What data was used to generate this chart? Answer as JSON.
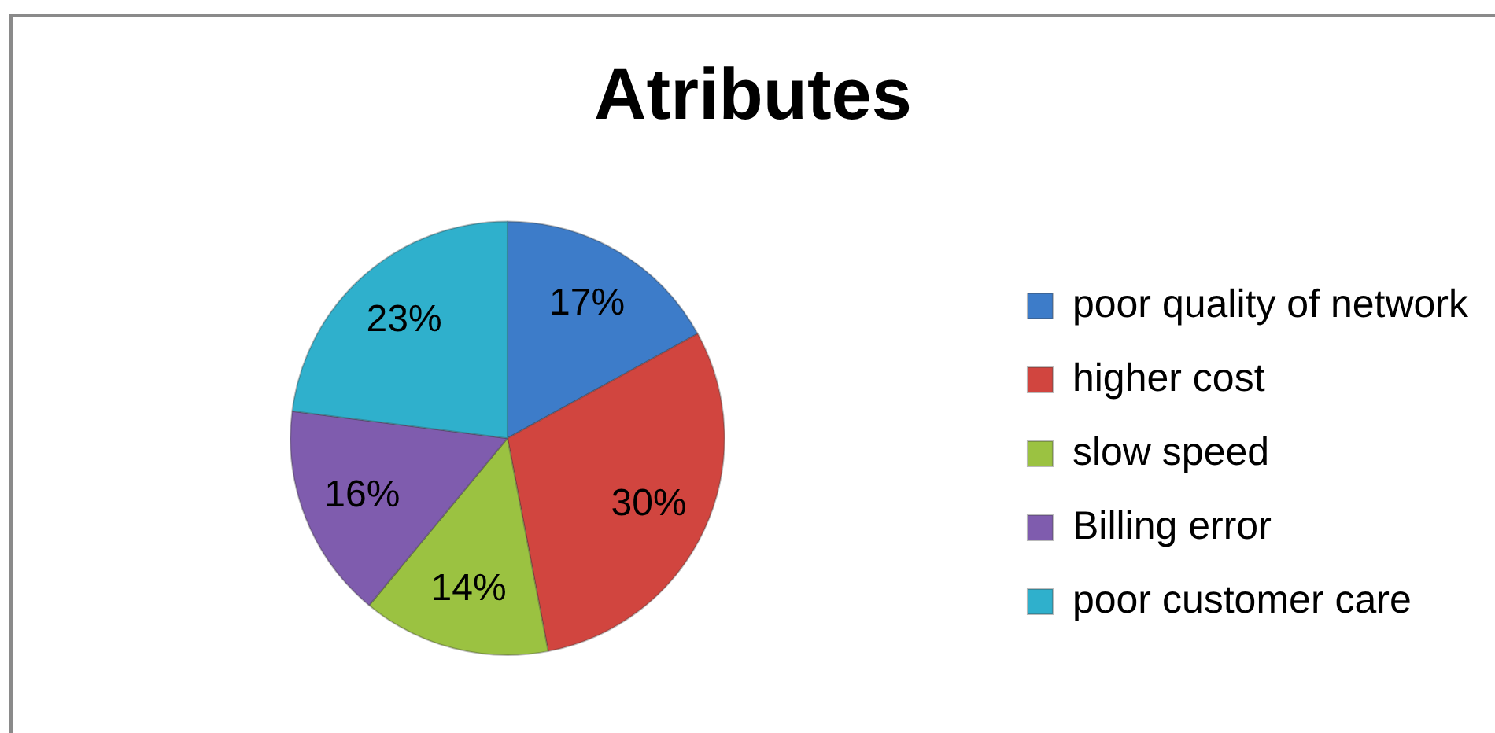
{
  "chart_data": {
    "type": "pie",
    "title": "Atributes",
    "categories": [
      "poor quality of network",
      "higher cost",
      "slow speed",
      "Billing error",
      "poor customer care"
    ],
    "values": [
      17,
      30,
      14,
      16,
      23
    ],
    "value_labels": [
      "17%",
      "30%",
      "14%",
      "16%",
      "23%"
    ],
    "colors": [
      "#3d7cc9",
      "#d1453f",
      "#9bc241",
      "#7f5cae",
      "#2fb0cc"
    ],
    "legend": "right"
  }
}
